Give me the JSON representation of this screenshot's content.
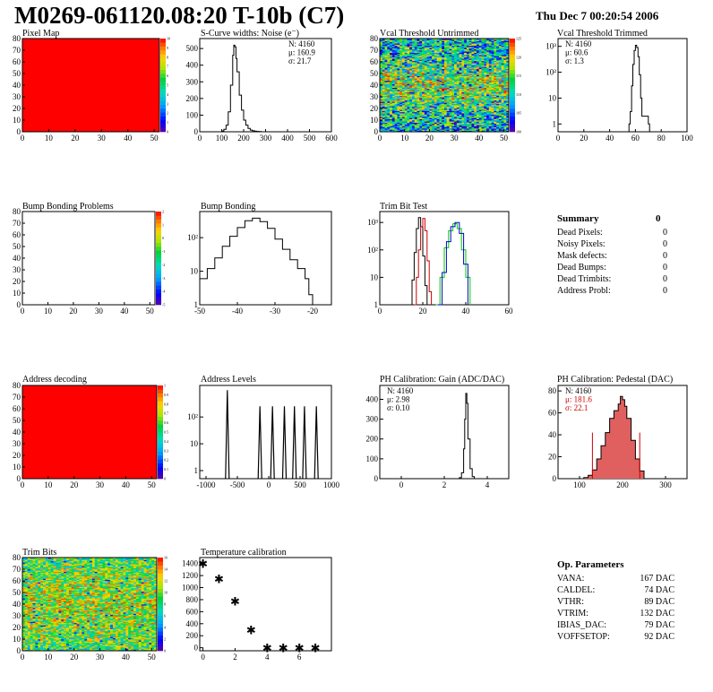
{
  "header": {
    "title": "M0269-061120.08:20 T-10b (C7)",
    "timestamp": "Thu Dec  7 00:20:54 2006"
  },
  "summary": {
    "title": "Summary",
    "total": "0",
    "rows": [
      {
        "label": "Dead Pixels:",
        "value": "0"
      },
      {
        "label": "Noisy Pixels:",
        "value": "0"
      },
      {
        "label": "Mask defects:",
        "value": "0"
      },
      {
        "label": "Dead Bumps:",
        "value": "0"
      },
      {
        "label": "Dead Trimbits:",
        "value": "0"
      },
      {
        "label": "Address Probl:",
        "value": "0"
      }
    ]
  },
  "op_params": {
    "title": "Op. Parameters",
    "rows": [
      {
        "label": "VANA:",
        "value": "167 DAC"
      },
      {
        "label": "CALDEL:",
        "value": "74 DAC"
      },
      {
        "label": "VTHR:",
        "value": "89 DAC"
      },
      {
        "label": "VTRIM:",
        "value": "132 DAC"
      },
      {
        "label": "IBIAS_DAC:",
        "value": "79 DAC"
      },
      {
        "label": "VOFFSETOP:",
        "value": "92 DAC"
      }
    ]
  },
  "colors": {
    "frame": "#000000",
    "red_map": "#ff0000",
    "trim_red": "#cc0000",
    "trim_green": "#00cc00",
    "trim_blue": "#0000cc",
    "pedestal_fill": "#e06060",
    "pedestal_stat": "#cc0000"
  },
  "chart_data": [
    {
      "id": "pixel-map",
      "type": "heatmap",
      "title": "Pixel Map",
      "xlim": [
        0,
        52
      ],
      "ylim": [
        0,
        80
      ],
      "xticks": [
        "0",
        "10",
        "20",
        "30",
        "40",
        "50"
      ],
      "yticks": [
        "0",
        "10",
        "20",
        "30",
        "40",
        "50",
        "60",
        "70",
        "80"
      ],
      "uniform_value": 10,
      "zticks": [
        "0",
        "1",
        "2",
        "3",
        "4",
        "5",
        "6",
        "7",
        "8",
        "9",
        "10"
      ]
    },
    {
      "id": "scurve-noise",
      "type": "line",
      "title": "S-Curve widths: Noise (e⁻)",
      "xlim": [
        0,
        600
      ],
      "ylim": [
        0,
        560
      ],
      "xticks": [
        "0",
        "100",
        "200",
        "300",
        "400",
        "500",
        "600"
      ],
      "yticks": [
        "0",
        "100",
        "200",
        "300",
        "400",
        "500"
      ],
      "stats": [
        "N: 4160",
        "μ: 160.9",
        "σ: 21.7"
      ],
      "x": [
        90,
        100,
        110,
        120,
        130,
        140,
        150,
        155,
        160,
        165,
        170,
        180,
        190,
        200,
        210,
        220,
        230,
        240,
        250,
        260,
        270,
        280
      ],
      "values": [
        0,
        5,
        15,
        40,
        120,
        280,
        460,
        520,
        510,
        440,
        360,
        220,
        130,
        70,
        40,
        20,
        10,
        6,
        3,
        2,
        1,
        0
      ]
    },
    {
      "id": "vcal-untrimmed",
      "type": "heatmap",
      "title": "Vcal Threshold Untrimmed",
      "xlim": [
        0,
        52
      ],
      "ylim": [
        0,
        80
      ],
      "xticks": [
        "0",
        "10",
        "20",
        "30",
        "40",
        "50"
      ],
      "yticks": [
        "0",
        "10",
        "20",
        "30",
        "40",
        "50",
        "60",
        "70",
        "80"
      ],
      "zticks": [
        "100",
        "105",
        "110",
        "115",
        "120",
        "125"
      ],
      "zlim": [
        100,
        127
      ]
    },
    {
      "id": "vcal-trimmed",
      "type": "line",
      "title": "Vcal Threshold Trimmed",
      "log_y": true,
      "xlim": [
        0,
        100
      ],
      "ylim": [
        0.5,
        2000
      ],
      "xticks": [
        "0",
        "20",
        "40",
        "60",
        "80",
        "100"
      ],
      "yticks": [
        "1",
        "10",
        "10²",
        "10³"
      ],
      "stats": [
        "N: 4160",
        "μ: 60.6",
        "σ:  1.3"
      ],
      "x": [
        55,
        56,
        57,
        58,
        59,
        60,
        61,
        62,
        63,
        64,
        65,
        70,
        71
      ],
      "values": [
        1,
        3,
        30,
        200,
        700,
        1100,
        900,
        400,
        80,
        10,
        2,
        1,
        0
      ]
    },
    {
      "id": "bump-problems",
      "type": "heatmap",
      "title": "Bump Bonding Problems",
      "xlim": [
        0,
        52
      ],
      "ylim": [
        0,
        80
      ],
      "xticks": [
        "0",
        "10",
        "20",
        "30",
        "40",
        "50"
      ],
      "yticks": [
        "0",
        "10",
        "20",
        "30",
        "40",
        "50",
        "60",
        "70",
        "80"
      ],
      "zticks": [
        "-5",
        "-4",
        "-3",
        "-2",
        "-1",
        "0",
        "1",
        "2"
      ],
      "empty": true
    },
    {
      "id": "bump-bonding",
      "type": "line",
      "title": "Bump Bonding",
      "log_y": true,
      "xlim": [
        -50,
        -15
      ],
      "ylim": [
        1,
        600
      ],
      "xticks": [
        "-50",
        "-40",
        "-30",
        "-20"
      ],
      "yticks": [
        "1",
        "10",
        "10²"
      ],
      "x": [
        -50,
        -48,
        -46,
        -44,
        -42,
        -40,
        -38,
        -36,
        -34,
        -32,
        -30,
        -28,
        -26,
        -24,
        -22,
        -21,
        -20
      ],
      "values": [
        6,
        12,
        25,
        55,
        110,
        200,
        320,
        380,
        300,
        190,
        90,
        45,
        22,
        12,
        6,
        2,
        1
      ]
    },
    {
      "id": "trim-bit-test",
      "type": "line",
      "title": "Trim Bit Test",
      "log_y": true,
      "xlim": [
        0,
        60
      ],
      "ylim": [
        1,
        2500
      ],
      "xticks": [
        "0",
        "20",
        "40",
        "60"
      ],
      "yticks": [
        "1",
        "10",
        "10²",
        "10³"
      ],
      "series": [
        {
          "color": "#000000",
          "x": [
            14,
            15,
            16,
            17,
            18,
            19,
            20,
            21,
            22
          ],
          "values": [
            1,
            8,
            80,
            600,
            1500,
            700,
            60,
            5,
            1
          ]
        },
        {
          "color": "#cc0000",
          "x": [
            16,
            17,
            18,
            19,
            20,
            21,
            22,
            23,
            24
          ],
          "values": [
            1,
            10,
            100,
            700,
            1400,
            500,
            40,
            3,
            1
          ]
        },
        {
          "color": "#00cc00",
          "x": [
            26,
            28,
            30,
            32,
            34,
            36,
            38,
            40,
            42
          ],
          "values": [
            1,
            10,
            120,
            500,
            900,
            600,
            100,
            10,
            1
          ]
        },
        {
          "color": "#0000cc",
          "x": [
            27,
            29,
            31,
            33,
            35,
            37,
            39,
            41
          ],
          "values": [
            1,
            15,
            200,
            700,
            1000,
            400,
            30,
            1
          ]
        }
      ]
    },
    {
      "id": "address-decoding",
      "type": "heatmap",
      "title": "Address decoding",
      "xlim": [
        0,
        52
      ],
      "ylim": [
        0,
        80
      ],
      "xticks": [
        "0",
        "10",
        "20",
        "30",
        "40",
        "50"
      ],
      "yticks": [
        "0",
        "10",
        "20",
        "30",
        "40",
        "50",
        "60",
        "70",
        "80"
      ],
      "uniform_value": 1,
      "zticks": [
        "0",
        "0.1",
        "0.2",
        "0.3",
        "0.4",
        "0.5",
        "0.6",
        "0.7",
        "0.8",
        "0.9",
        "1"
      ]
    },
    {
      "id": "address-levels",
      "type": "line",
      "title": "Address Levels",
      "log_y": true,
      "xlim": [
        -1100,
        1000
      ],
      "ylim": [
        0.5,
        1500
      ],
      "xticks": [
        "-1000",
        "-500",
        "0",
        "500",
        "1000"
      ],
      "yticks": [
        "1",
        "10",
        "10²"
      ],
      "peaks": [
        {
          "x": -660,
          "value": 1000
        },
        {
          "x": -140,
          "value": 250
        },
        {
          "x": 60,
          "value": 250
        },
        {
          "x": 250,
          "value": 250
        },
        {
          "x": 410,
          "value": 250
        },
        {
          "x": 570,
          "value": 250
        },
        {
          "x": 760,
          "value": 250
        }
      ]
    },
    {
      "id": "ph-gain",
      "type": "line",
      "title": "PH Calibration: Gain (ADC/DAC)",
      "xlim": [
        -1,
        5
      ],
      "ylim": [
        0,
        470
      ],
      "xticks": [
        "0",
        "2",
        "4"
      ],
      "yticks": [
        "0",
        "100",
        "200",
        "300",
        "400"
      ],
      "stats": [
        "N: 4160",
        "μ: 2.98",
        "σ: 0.10"
      ],
      "x": [
        2.6,
        2.7,
        2.8,
        2.9,
        2.95,
        3.0,
        3.05,
        3.1,
        3.2,
        3.3,
        3.4
      ],
      "values": [
        0,
        5,
        30,
        150,
        300,
        430,
        380,
        200,
        50,
        10,
        0
      ]
    },
    {
      "id": "ph-pedestal",
      "type": "line",
      "title": "PH Calibration: Pedestal (DAC)",
      "xlim": [
        50,
        350
      ],
      "ylim": [
        0,
        85
      ],
      "xticks": [
        "100",
        "200",
        "300"
      ],
      "yticks": [
        "0",
        "20",
        "40",
        "60",
        "80"
      ],
      "stats": [
        "N: 4160",
        "μ: 181.6",
        "σ: 22.1"
      ],
      "limits": [
        {
          "x": 130,
          "value": 42
        },
        {
          "x": 240,
          "value": 42
        }
      ],
      "x": [
        110,
        120,
        130,
        140,
        150,
        160,
        170,
        180,
        190,
        195,
        200,
        205,
        210,
        220,
        230,
        240,
        250
      ],
      "values": [
        1,
        3,
        8,
        18,
        30,
        42,
        55,
        62,
        68,
        75,
        72,
        66,
        55,
        35,
        18,
        7,
        1
      ]
    },
    {
      "id": "trim-bits",
      "type": "heatmap",
      "title": "Trim Bits",
      "xlim": [
        0,
        52
      ],
      "ylim": [
        0,
        80
      ],
      "xticks": [
        "0",
        "10",
        "20",
        "30",
        "40",
        "50"
      ],
      "yticks": [
        "0",
        "10",
        "20",
        "30",
        "40",
        "50",
        "60",
        "70",
        "80"
      ],
      "zticks": [
        "0",
        "2",
        "4",
        "6",
        "8",
        "10",
        "12",
        "14",
        "16"
      ],
      "zlim": [
        0,
        16
      ]
    },
    {
      "id": "temperature-calibration",
      "type": "scatter",
      "title": "Temperature calibration",
      "xlim": [
        -0.2,
        8
      ],
      "ylim": [
        -50,
        1500
      ],
      "xticks": [
        "0",
        "2",
        "4",
        "6"
      ],
      "yticks": [
        "0",
        "200",
        "400",
        "600",
        "800",
        "1000",
        "1200",
        "1400"
      ],
      "x": [
        0,
        1,
        2,
        3,
        4,
        5,
        6,
        7
      ],
      "values": [
        1400,
        1150,
        780,
        300,
        5,
        5,
        5,
        5
      ]
    }
  ]
}
